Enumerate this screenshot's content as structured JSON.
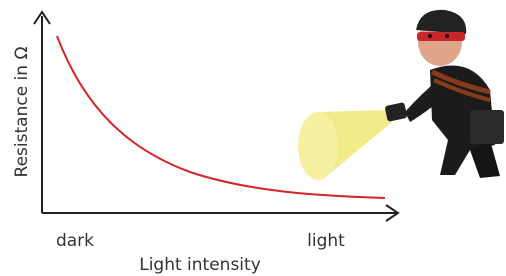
{
  "y_axis_label": "Resistance in Ω",
  "x_axis_label": "Light intensity",
  "x_labels": [
    "dark",
    "light"
  ]
}
